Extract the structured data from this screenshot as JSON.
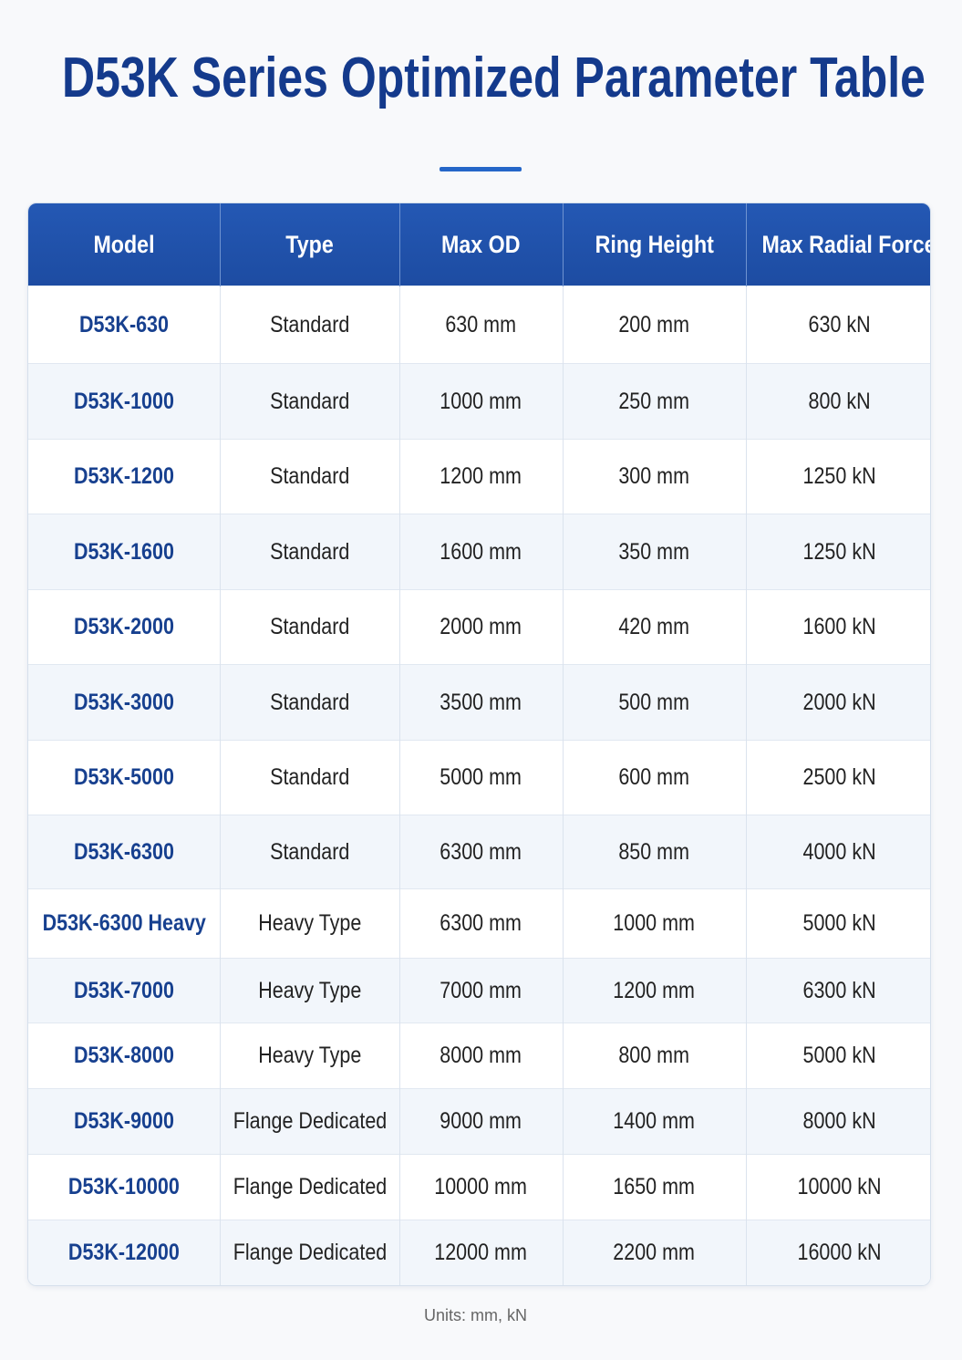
{
  "header": {
    "title": "D53K Series Optimized Parameter Table"
  },
  "table": {
    "headers": [
      "Model",
      "Type",
      "Max OD",
      "Ring Height",
      "Max Radial Force"
    ],
    "rows": [
      [
        "D53K-630",
        "Standard",
        "630 mm",
        "200 mm",
        "630 kN"
      ],
      [
        "D53K-1000",
        "Standard",
        "1000 mm",
        "250 mm",
        "800 kN"
      ],
      [
        "D53K-1200",
        "Standard",
        "1200 mm",
        "300 mm",
        "1250 kN"
      ],
      [
        "D53K-1600",
        "Standard",
        "1600 mm",
        "350 mm",
        "1250 kN"
      ],
      [
        "D53K-2000",
        "Standard",
        "2000 mm",
        "420 mm",
        "1600 kN"
      ],
      [
        "D53K-3000",
        "Standard",
        "3500 mm",
        "500 mm",
        "2000 kN"
      ],
      [
        "D53K-5000",
        "Standard",
        "5000 mm",
        "600 mm",
        "2500 kN"
      ],
      [
        "D53K-6300",
        "Standard",
        "6300 mm",
        "850 mm",
        "4000 kN"
      ],
      [
        "D53K-6300 Heavy",
        "Heavy Type",
        "6300 mm",
        "1000 mm",
        "5000 kN"
      ],
      [
        "D53K-7000",
        "Heavy Type",
        "7000 mm",
        "1200 mm",
        "6300 kN"
      ],
      [
        "D53K-8000",
        "Heavy Type",
        "8000 mm",
        "800 mm",
        "5000 kN"
      ],
      [
        "D53K-9000",
        "Flange Dedicated",
        "9000 mm",
        "1400 mm",
        "8000 kN"
      ],
      [
        "D53K-10000",
        "Flange Dedicated",
        "10000 mm",
        "1650 mm",
        "10000 kN"
      ],
      [
        "D53K-12000",
        "Flange Dedicated",
        "12000 mm",
        "2200 mm",
        "16000 kN"
      ]
    ]
  },
  "footer": {
    "note": "Units: mm, kN"
  }
}
